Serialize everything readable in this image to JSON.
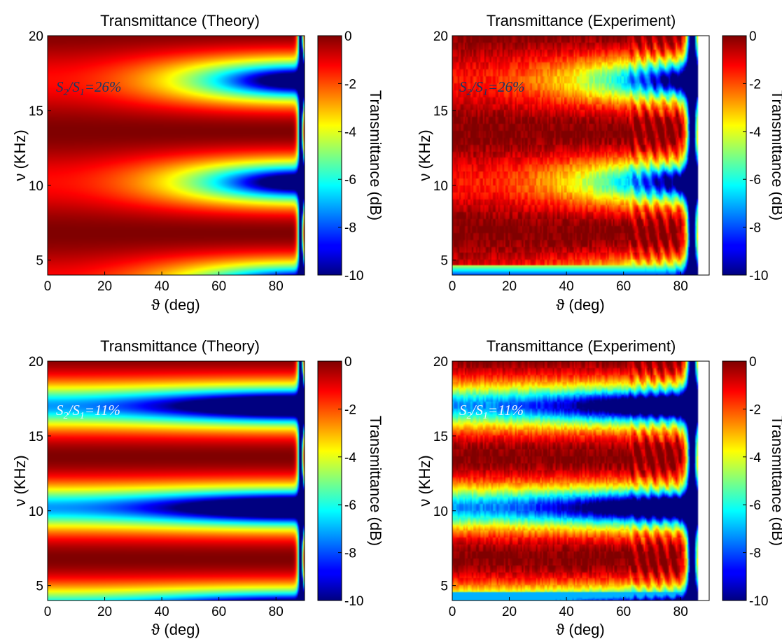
{
  "chart_data": [
    {
      "type": "heatmap",
      "title": "Transmittance (Theory)",
      "xlabel": "ϑ (deg)",
      "ylabel": "ν (KHz)",
      "colorbar_label": "Transmittance (dB)",
      "xlim": [
        0,
        90
      ],
      "ylim": [
        4,
        20
      ],
      "clim": [
        -10,
        0
      ],
      "xticks": [
        0,
        20,
        40,
        60,
        80
      ],
      "yticks": [
        5,
        10,
        15,
        20
      ],
      "cticks": [
        0,
        -2,
        -4,
        -6,
        -8,
        -10
      ],
      "annotation": {
        "lhs": "S",
        "sub1": "2",
        "mid": "/S",
        "sub2": "1",
        "rhs": "=26%"
      },
      "colormap": "jet",
      "max_transmission_bands_khz": [
        13.6,
        6.8
      ],
      "min_transmission_centers_khz": [
        17.0,
        10.2,
        4.2
      ],
      "notch_angle_deg": 89
    },
    {
      "type": "heatmap",
      "title": "Transmittance (Experiment)",
      "xlabel": "ϑ (deg)",
      "ylabel": "ν (KHz)",
      "colorbar_label": "Transmittance (dB)",
      "xlim": [
        0,
        90
      ],
      "ylim": [
        4,
        20
      ],
      "clim": [
        -10,
        0
      ],
      "xticks": [
        0,
        20,
        40,
        60,
        80
      ],
      "yticks": [
        5,
        10,
        15,
        20
      ],
      "cticks": [
        0,
        -2,
        -4,
        -6,
        -8,
        -10
      ],
      "annotation": {
        "lhs": "S",
        "sub1": "2",
        "mid": "/S",
        "sub2": "1",
        "rhs": "=26%"
      },
      "colormap": "jet",
      "max_transmission_bands_khz": [
        13.6,
        6.8
      ],
      "min_transmission_centers_khz": [
        16.8,
        9.8
      ],
      "notch_angle_deg": 84,
      "no_data_above_deg": 86
    },
    {
      "type": "heatmap",
      "title": "Transmittance (Theory)",
      "xlabel": "ϑ (deg)",
      "ylabel": "ν (KHz)",
      "colorbar_label": "Transmittance (dB)",
      "xlim": [
        0,
        90
      ],
      "ylim": [
        4,
        20
      ],
      "clim": [
        -10,
        0
      ],
      "xticks": [
        0,
        20,
        40,
        60,
        80
      ],
      "yticks": [
        5,
        10,
        15,
        20
      ],
      "cticks": [
        0,
        -2,
        -4,
        -6,
        -8,
        -10
      ],
      "annotation": {
        "lhs": "S",
        "sub1": "2",
        "mid": "/S",
        "sub2": "1",
        "rhs": "=11%"
      },
      "colormap": "jet",
      "max_transmission_bands_khz": [
        13.6,
        6.8
      ],
      "min_transmission_centers_khz": [
        17.0,
        10.2,
        4.5
      ],
      "notch_angle_deg": 89
    },
    {
      "type": "heatmap",
      "title": "Transmittance (Experiment)",
      "xlabel": "ϑ (deg)",
      "ylabel": "ν (KHz)",
      "colorbar_label": "Transmittance (dB)",
      "xlim": [
        0,
        90
      ],
      "ylim": [
        4,
        20
      ],
      "clim": [
        -10,
        0
      ],
      "xticks": [
        0,
        20,
        40,
        60,
        80
      ],
      "yticks": [
        5,
        10,
        15,
        20
      ],
      "cticks": [
        0,
        -2,
        -4,
        -6,
        -8,
        -10
      ],
      "annotation": {
        "lhs": "S",
        "sub1": "2",
        "mid": "/S",
        "sub2": "1",
        "rhs": "=11%"
      },
      "colormap": "jet",
      "max_transmission_bands_khz": [
        13.4,
        6.6
      ],
      "min_transmission_centers_khz": [
        17.0,
        10.0,
        4.6
      ],
      "notch_angle_deg": 84,
      "no_data_above_deg": 86
    }
  ]
}
